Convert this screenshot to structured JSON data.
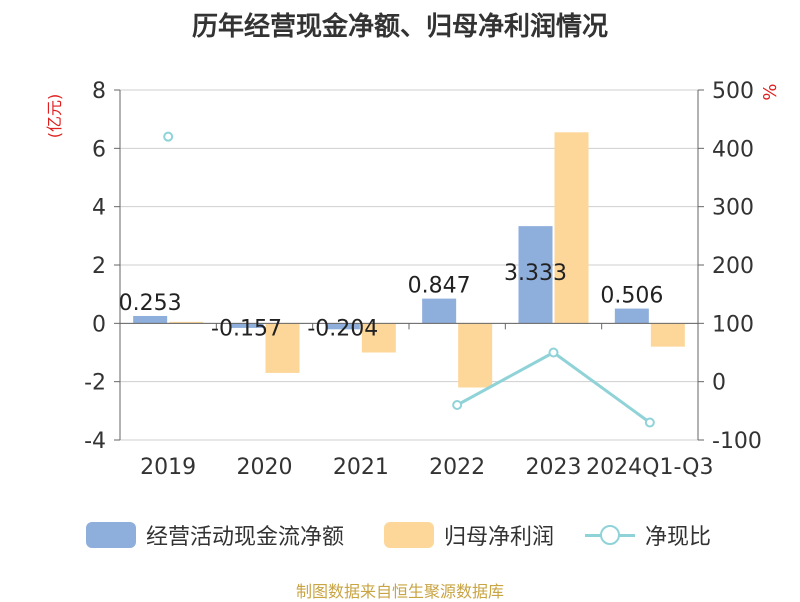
{
  "title": "历年经营现金净额、归母净利润情况",
  "source": "制图数据来自恒生聚源数据库",
  "chart_data": {
    "type": "bar",
    "categories": [
      "2019",
      "2020",
      "2021",
      "2022",
      "2023",
      "2024Q1-Q3"
    ],
    "y_left": {
      "label": "(亿元)",
      "min": -4,
      "max": 8,
      "ticks": [
        "8",
        "6",
        "4",
        "2",
        "0",
        "-2",
        "-4"
      ]
    },
    "y_right": {
      "label": "%",
      "min": -100,
      "max": 500,
      "ticks": [
        "500",
        "400",
        "300",
        "200",
        "100",
        "0",
        "-100"
      ]
    },
    "series": [
      {
        "name": "经营活动现金流净额",
        "type": "bar",
        "axis": "left",
        "color": "#8eaedc",
        "values": [
          0.253,
          -0.157,
          -0.204,
          0.847,
          3.333,
          0.506
        ],
        "labels": [
          "0.253",
          "-0.157",
          "-0.204",
          "0.847",
          "3.333",
          "0.506"
        ]
      },
      {
        "name": "归母净利润",
        "type": "bar",
        "axis": "left",
        "color": "#fdd79a",
        "values": [
          0.05,
          -1.7,
          -1.0,
          -2.2,
          6.55,
          -0.8
        ]
      },
      {
        "name": "净现比",
        "type": "line",
        "axis": "right",
        "color": "#8fd3d8",
        "values": [
          420,
          null,
          null,
          -40,
          50,
          -70
        ]
      }
    ],
    "legend_position": "bottom",
    "grid": true
  }
}
